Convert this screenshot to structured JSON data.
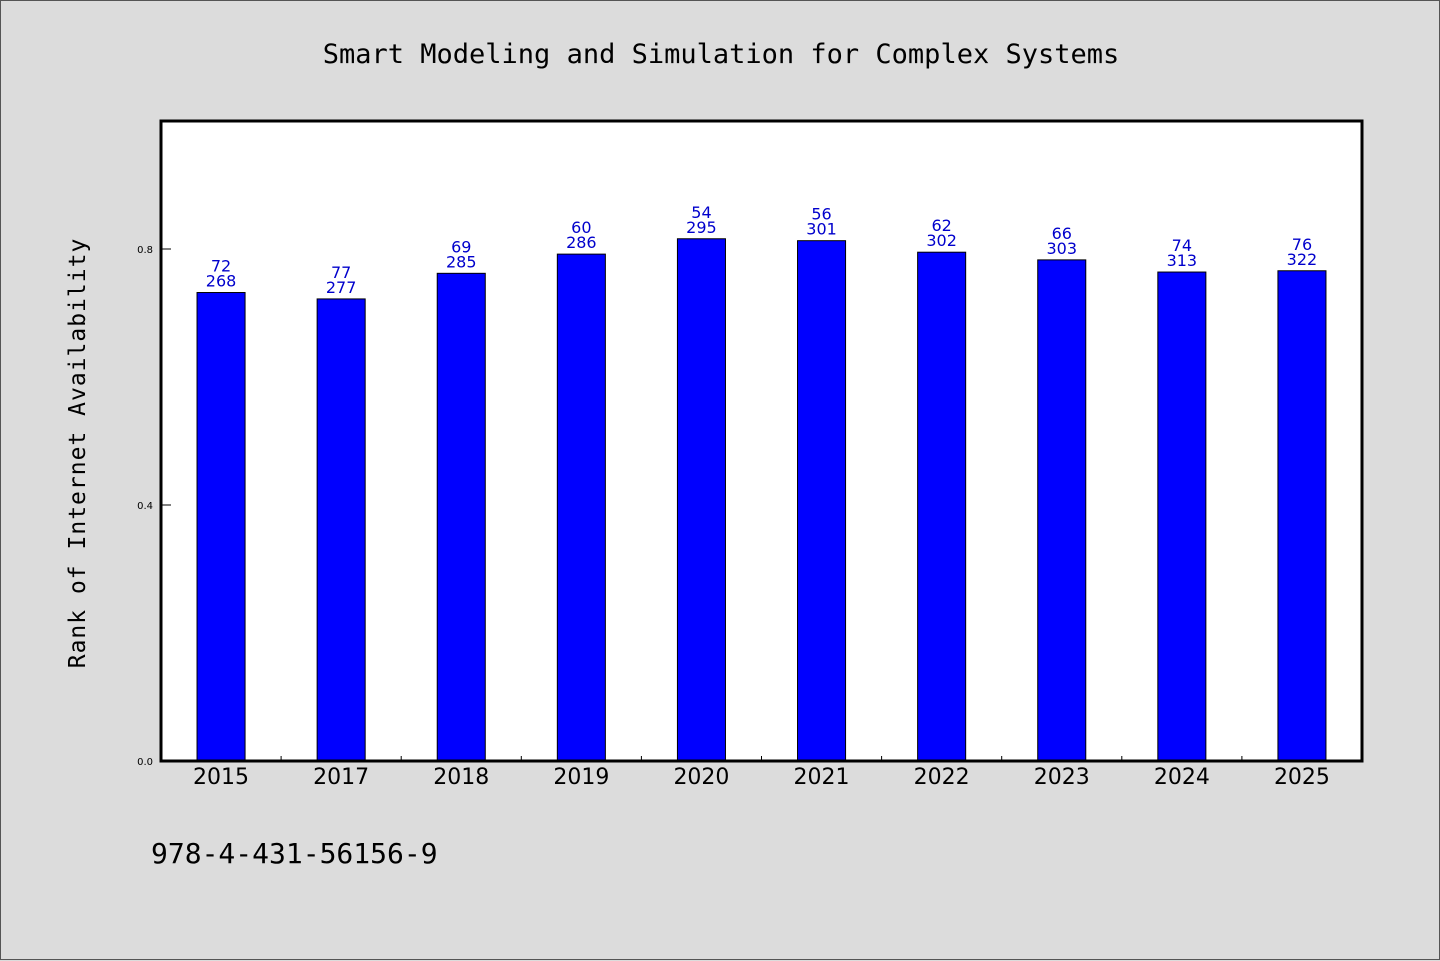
{
  "chart_data": {
    "type": "bar",
    "title": "Smart Modeling and Simulation for Complex Systems",
    "xlabel": "",
    "ylabel": "Rank of Internet Availability",
    "categories": [
      "2015",
      "2017",
      "2018",
      "2019",
      "2020",
      "2021",
      "2022",
      "2023",
      "2024",
      "2025"
    ],
    "values": [
      0.732,
      0.722,
      0.762,
      0.792,
      0.816,
      0.813,
      0.795,
      0.783,
      0.764,
      0.766
    ],
    "label_top": [
      "72",
      "77",
      "69",
      "60",
      "54",
      "56",
      "62",
      "66",
      "74",
      "76"
    ],
    "label_bottom": [
      "268",
      "277",
      "285",
      "286",
      "295",
      "301",
      "302",
      "303",
      "313",
      "322"
    ],
    "ylim": [
      0,
      1.0
    ],
    "yticks": [
      0.0,
      0.4,
      0.8
    ],
    "ytick_labels": [
      "0.0",
      "0.4",
      "0.8"
    ],
    "grid": false,
    "colors": {
      "bar": "#0000ff",
      "label": "#0000cc",
      "background": "#dcdcdc",
      "plot_bg": "#ffffff"
    }
  },
  "footer": {
    "isbn": "978-4-431-56156-9"
  }
}
